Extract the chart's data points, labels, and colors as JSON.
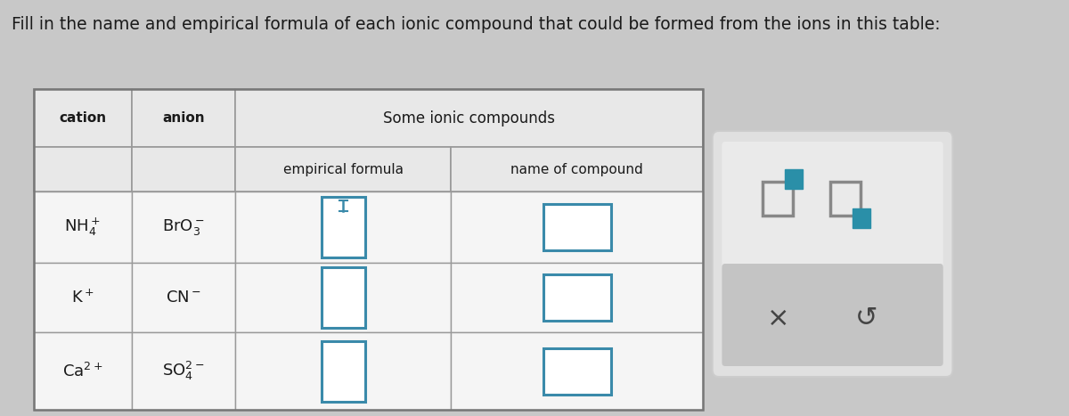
{
  "title": "Fill in the name and empirical formula of each ionic compound that could be formed from the ions in this table:",
  "table_title": "Some ionic compounds",
  "col_headers": [
    "cation",
    "anion",
    "empirical formula",
    "name of compound"
  ],
  "cations": [
    "NH$_4^+$",
    "K$^+$",
    "Ca$^{2+}$"
  ],
  "anions": [
    "BrO$_3^-$",
    "CN$^-$",
    "SO$_4^{2-}$"
  ],
  "bg_color": "#c8c8c8",
  "table_light": "#e8e8e8",
  "table_header": "#d8d8d8",
  "white_cell": "#f5f5f5",
  "input_box_color": "#3a8aaa",
  "title_color": "#1a1a1a",
  "text_color": "#1a1a1a",
  "panel_bg_top": "#e8e8e8",
  "panel_bg_bot": "#c0c0c0",
  "teal_fill": "#2a8fa8",
  "gray_sq": "#888888"
}
